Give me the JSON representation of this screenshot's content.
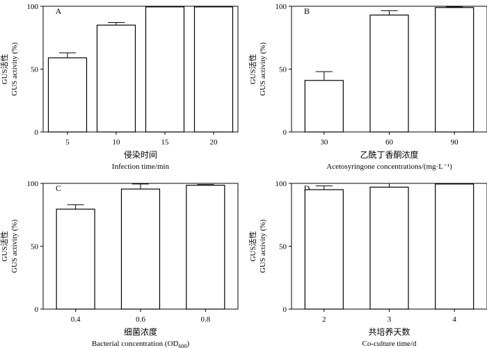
{
  "chart_data": [
    {
      "type": "bar",
      "panel_label": "A",
      "categories": [
        "5",
        "10",
        "15",
        "20"
      ],
      "values": [
        59,
        85,
        99.5,
        99.5
      ],
      "errors": [
        4,
        2,
        0.5,
        0.5
      ],
      "ylabel_cn": "GUS活性",
      "ylabel_en": "GUS activity (%)",
      "xlabel_cn": "侵染时间",
      "xlabel_en": "Infection time/min",
      "xlabel_sub": "",
      "xlabel_after": "",
      "ylim": [
        0,
        100
      ],
      "yticks": [
        "0",
        "50",
        "100"
      ],
      "ytick_values": [
        0,
        50,
        100
      ],
      "grid": false
    },
    {
      "type": "bar",
      "panel_label": "B",
      "categories": [
        "30",
        "60",
        "90"
      ],
      "values": [
        41,
        93,
        99
      ],
      "errors": [
        7,
        3.5,
        0.5
      ],
      "ylabel_cn": "GUS活性",
      "ylabel_en": "GUS activity (%)",
      "xlabel_cn": "乙酰丁香酮浓度",
      "xlabel_en": "Acetosyringone concentrations/(mg·L⁻¹)",
      "xlabel_sub": "",
      "xlabel_after": "",
      "ylim": [
        0,
        100
      ],
      "yticks": [
        "0",
        "50",
        "100"
      ],
      "ytick_values": [
        0,
        50,
        100
      ],
      "grid": false
    },
    {
      "type": "bar",
      "panel_label": "C",
      "categories": [
        "0.4",
        "0.6",
        "0.8"
      ],
      "values": [
        79.5,
        95.5,
        98.5
      ],
      "errors": [
        3.5,
        4,
        0.5
      ],
      "ylabel_cn": "GUS活性",
      "ylabel_en": "GUS activity (%)",
      "xlabel_cn": "细菌浓度",
      "xlabel_en": "Bacterial concentration (OD",
      "xlabel_sub": "600",
      "xlabel_after": ")",
      "ylim": [
        0,
        100
      ],
      "yticks": [
        "0",
        "50",
        "100"
      ],
      "ytick_values": [
        0,
        50,
        100
      ],
      "grid": false
    },
    {
      "type": "bar",
      "panel_label": "D",
      "categories": [
        "2",
        "3",
        "4"
      ],
      "values": [
        95,
        97,
        99.5
      ],
      "errors": [
        3,
        3,
        0
      ],
      "ylabel_cn": "GUS活性",
      "ylabel_en": "GUS activity (%)",
      "xlabel_cn": "共培养天数",
      "xlabel_en": "Co-culture time/d",
      "xlabel_sub": "",
      "xlabel_after": "",
      "ylim": [
        0,
        100
      ],
      "yticks": [
        "0",
        "50",
        "100"
      ],
      "ytick_values": [
        0,
        50,
        100
      ],
      "grid": false
    }
  ]
}
